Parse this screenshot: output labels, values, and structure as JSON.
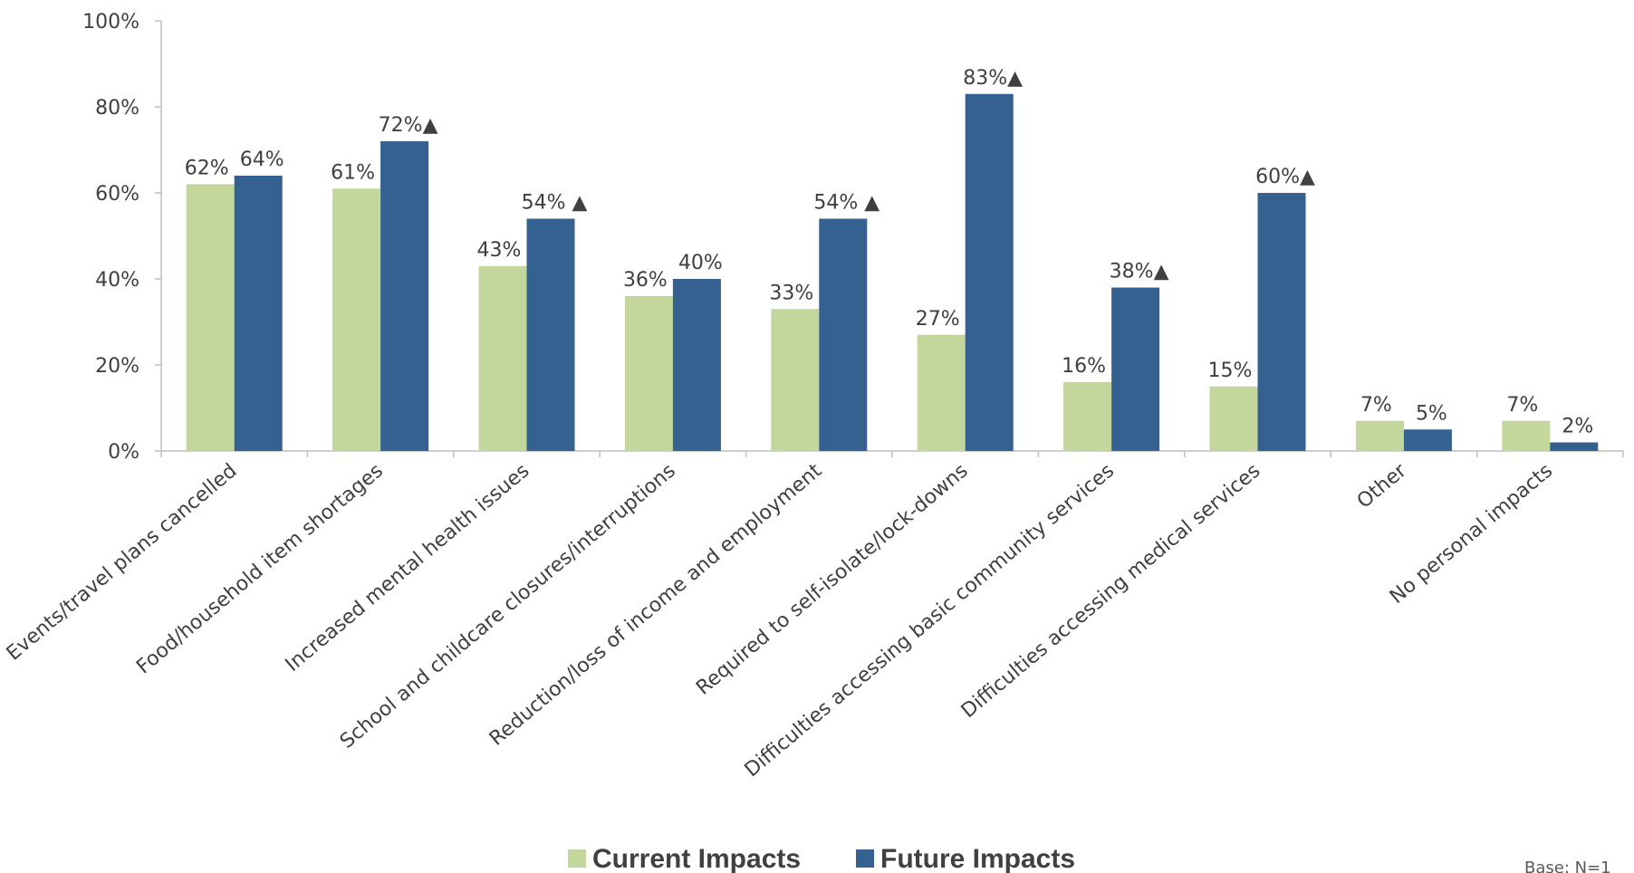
{
  "chart_data": {
    "type": "bar",
    "categories": [
      "Events/travel plans cancelled",
      "Food/household item shortages",
      "Increased mental health issues",
      "School and childcare closures/interruptions",
      "Reduction/loss of income and employment",
      "Required to self-isolate/lock-downs",
      "Difficulties accessing basic community services",
      "Difficulties accessing medical services",
      "Other",
      "No personal impacts"
    ],
    "series": [
      {
        "name": "Current Impacts",
        "color": "#c3d69b",
        "values": [
          62,
          61,
          43,
          36,
          33,
          27,
          16,
          15,
          7,
          7
        ],
        "labels": [
          "62%",
          "61%",
          "43%",
          "36%",
          "33%",
          "27%",
          "16%",
          "15%",
          "7%",
          "7%"
        ]
      },
      {
        "name": "Future Impacts",
        "color": "#346190",
        "values": [
          64,
          72,
          54,
          40,
          54,
          83,
          38,
          60,
          5,
          2
        ],
        "labels": [
          "64%",
          "72%▲",
          "54% ▲",
          "40%",
          "54% ▲",
          "83%▲",
          "38%▲",
          "60%▲",
          "5%",
          "2%"
        ]
      }
    ],
    "ylim": [
      0,
      100
    ],
    "yticks": [
      "0%",
      "20%",
      "40%",
      "60%",
      "80%",
      "100%"
    ],
    "grid": false,
    "legend": "bottom-center",
    "xlabel": "",
    "ylabel": "",
    "title": ""
  },
  "footnote": "Base: N=1"
}
